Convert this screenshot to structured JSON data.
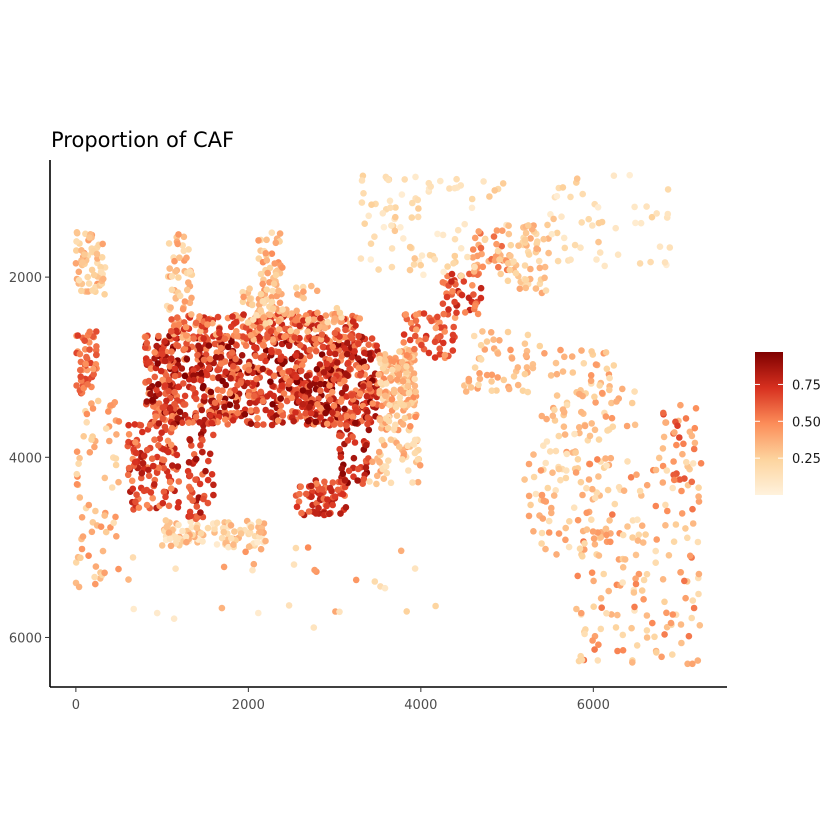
{
  "chart_data": {
    "type": "scatter",
    "title": "Proportion of CAF",
    "xlabel": "",
    "ylabel": "",
    "xlim": [
      -300,
      7550
    ],
    "ylim": [
      6550,
      700
    ],
    "y_reversed": true,
    "x_ticks": [
      "0",
      "2000",
      "4000",
      "6000"
    ],
    "x_tick_values": [
      0,
      2000,
      4000,
      6000
    ],
    "y_ticks": [
      "2000",
      "4000",
      "6000"
    ],
    "y_tick_values": [
      2000,
      4000,
      6000
    ],
    "grid": false,
    "legend_position": "right",
    "color_scale": {
      "name": "",
      "min": 0.0,
      "max": 0.97,
      "ticks": [
        "0.25",
        "0.50",
        "0.75"
      ],
      "tick_values": [
        0.25,
        0.5,
        0.75
      ],
      "colors": [
        "#fff2dd",
        "#fdd49e",
        "#fc8d59",
        "#d7301f",
        "#7f0000"
      ]
    },
    "point_groups_note_free": true,
    "clusters": [
      {
        "x": [
          800,
          3500
        ],
        "y": [
          2650,
          3650
        ],
        "level": [
          0.45,
          0.97
        ],
        "count": 900
      },
      {
        "x": [
          1100,
          3300
        ],
        "y": [
          2400,
          2700
        ],
        "level": [
          0.3,
          0.8
        ],
        "count": 220
      },
      {
        "x": [
          3500,
          3950
        ],
        "y": [
          2800,
          3700
        ],
        "level": [
          0.15,
          0.5
        ],
        "count": 160
      },
      {
        "x": [
          3800,
          4400
        ],
        "y": [
          2400,
          2900
        ],
        "level": [
          0.4,
          0.75
        ],
        "count": 60
      },
      {
        "x": [
          4250,
          4700
        ],
        "y": [
          1950,
          2450
        ],
        "level": [
          0.45,
          0.8
        ],
        "count": 45
      },
      {
        "x": [
          4600,
          5000
        ],
        "y": [
          1450,
          1950
        ],
        "level": [
          0.3,
          0.6
        ],
        "count": 30
      },
      {
        "x": [
          0,
          350
        ],
        "y": [
          1500,
          2200
        ],
        "level": [
          0.15,
          0.45
        ],
        "count": 60
      },
      {
        "x": [
          0,
          250
        ],
        "y": [
          2600,
          3300
        ],
        "level": [
          0.4,
          0.7
        ],
        "count": 50
      },
      {
        "x": [
          0,
          500
        ],
        "y": [
          3300,
          5500
        ],
        "level": [
          0.15,
          0.5
        ],
        "count": 70
      },
      {
        "x": [
          600,
          1200
        ],
        "y": [
          3600,
          4600
        ],
        "level": [
          0.45,
          0.85
        ],
        "count": 120
      },
      {
        "x": [
          1000,
          2200
        ],
        "y": [
          4700,
          5000
        ],
        "level": [
          0.05,
          0.4
        ],
        "count": 110
      },
      {
        "x": [
          1300,
          1600
        ],
        "y": [
          3700,
          4700
        ],
        "level": [
          0.55,
          0.9
        ],
        "count": 50
      },
      {
        "x": [
          2550,
          3150
        ],
        "y": [
          4250,
          4650
        ],
        "level": [
          0.5,
          0.85
        ],
        "count": 70
      },
      {
        "x": [
          3050,
          3400
        ],
        "y": [
          3600,
          4300
        ],
        "level": [
          0.6,
          0.95
        ],
        "count": 50
      },
      {
        "x": [
          3400,
          4000
        ],
        "y": [
          3800,
          4300
        ],
        "level": [
          0.1,
          0.45
        ],
        "count": 50
      },
      {
        "x": [
          1050,
          1350
        ],
        "y": [
          1500,
          2400
        ],
        "level": [
          0.15,
          0.45
        ],
        "count": 45
      },
      {
        "x": [
          2100,
          2400
        ],
        "y": [
          1500,
          2500
        ],
        "level": [
          0.15,
          0.5
        ],
        "count": 60
      },
      {
        "x": [
          1900,
          3100
        ],
        "y": [
          2100,
          2650
        ],
        "level": [
          0.15,
          0.45
        ],
        "count": 50
      },
      {
        "x": [
          3300,
          5000
        ],
        "y": [
          850,
          2000
        ],
        "level": [
          0.03,
          0.3
        ],
        "count": 90
      },
      {
        "x": [
          5000,
          5500
        ],
        "y": [
          1400,
          2200
        ],
        "level": [
          0.15,
          0.4
        ],
        "count": 60
      },
      {
        "x": [
          5400,
          6900
        ],
        "y": [
          850,
          1900
        ],
        "level": [
          0.03,
          0.3
        ],
        "count": 50
      },
      {
        "x": [
          4500,
          5400
        ],
        "y": [
          2600,
          3300
        ],
        "level": [
          0.15,
          0.45
        ],
        "count": 55
      },
      {
        "x": [
          5400,
          6500
        ],
        "y": [
          2800,
          3700
        ],
        "level": [
          0.15,
          0.45
        ],
        "count": 70
      },
      {
        "x": [
          5200,
          6200
        ],
        "y": [
          3700,
          5100
        ],
        "level": [
          0.1,
          0.45
        ],
        "count": 90
      },
      {
        "x": [
          5800,
          7250
        ],
        "y": [
          4000,
          6300
        ],
        "level": [
          0.1,
          0.55
        ],
        "count": 170
      },
      {
        "x": [
          6800,
          7200
        ],
        "y": [
          3400,
          4300
        ],
        "level": [
          0.3,
          0.7
        ],
        "count": 30
      },
      {
        "x": [
          500,
          4200
        ],
        "y": [
          5000,
          5900
        ],
        "level": [
          0.05,
          0.5
        ],
        "count": 30
      }
    ]
  }
}
